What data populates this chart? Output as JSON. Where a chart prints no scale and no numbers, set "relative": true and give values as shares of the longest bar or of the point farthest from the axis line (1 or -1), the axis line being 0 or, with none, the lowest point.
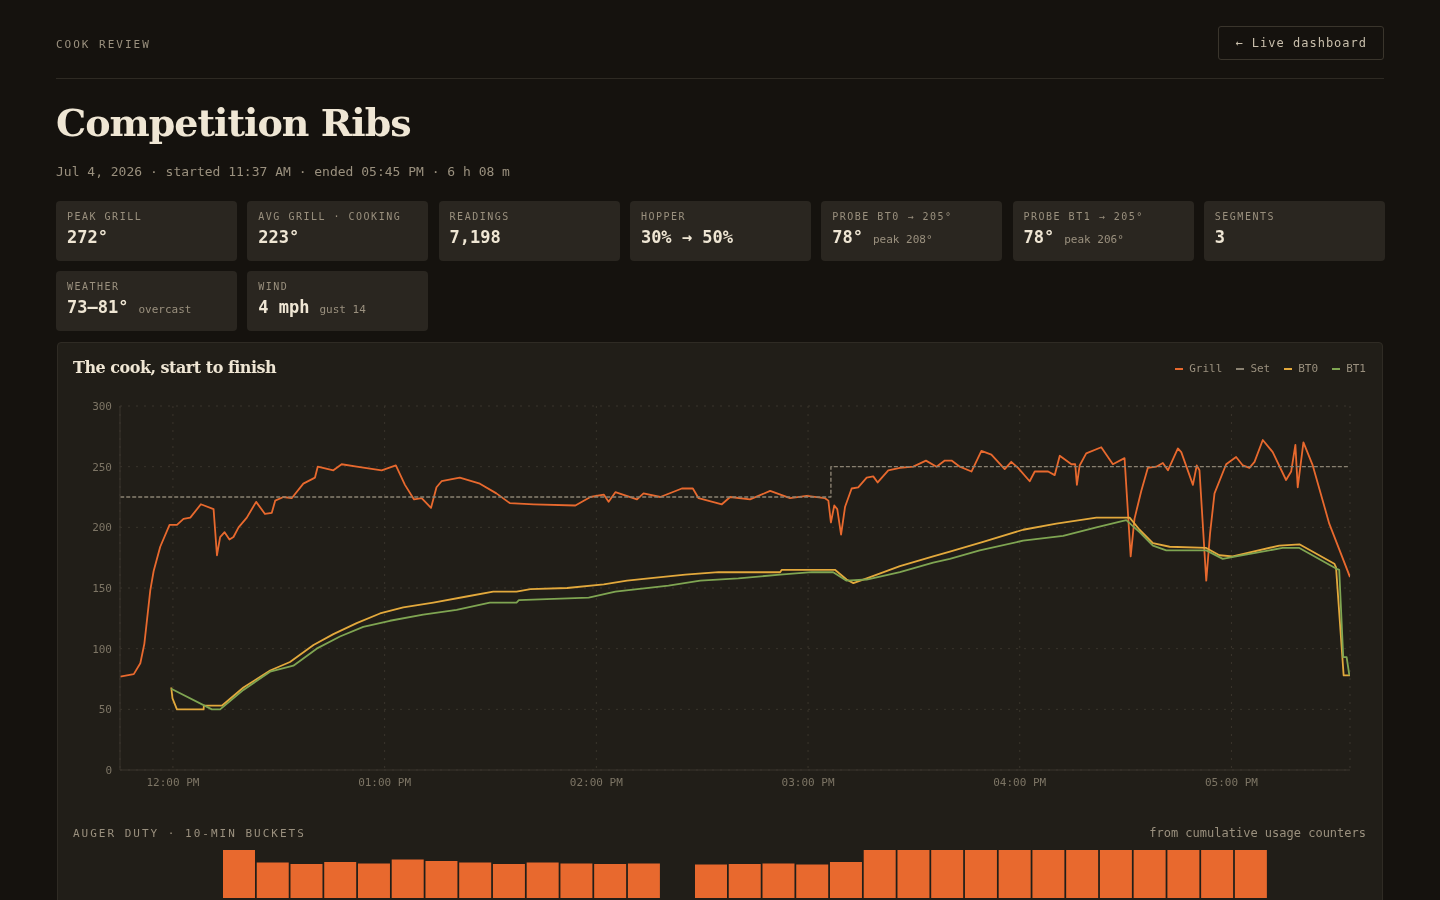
{
  "chart_data": [
    {
      "type": "other",
      "title": "Competition Ribs",
      "subtitle": "Jul 4, 2026 · started 11:37 AM · ended 05:45 PM · 6 h 08 m",
      "annotations": [
        "COOK REVIEW",
        "← Live dashboard"
      ]
    },
    {
      "type": "other",
      "title": "PEAK GRILL",
      "annotations": [
        "272°"
      ]
    },
    {
      "type": "other",
      "title": "AVG GRILL · COOKING",
      "annotations": [
        "223°"
      ]
    },
    {
      "type": "other",
      "title": "READINGS",
      "annotations": [
        "7,198"
      ]
    },
    {
      "type": "other",
      "title": "HOPPER",
      "annotations": [
        "30% → 50%"
      ]
    },
    {
      "type": "other",
      "title": "PROBE BT0 → 205°",
      "annotations": [
        "78°",
        "peak 208°"
      ]
    },
    {
      "type": "other",
      "title": "PROBE BT1 → 205°",
      "annotations": [
        "78°",
        "peak 206°"
      ]
    },
    {
      "type": "other",
      "title": "SEGMENTS",
      "annotations": [
        "3"
      ]
    },
    {
      "type": "other",
      "title": "WEATHER",
      "annotations": [
        "73–81°",
        "overcast"
      ]
    },
    {
      "type": "other",
      "title": "WIND",
      "annotations": [
        "4 mph",
        "gust 14"
      ]
    },
    {
      "type": "line",
      "title": "The cook, start to finish",
      "xlim": [
        11.75,
        17.56
      ],
      "xticks": [
        {
          "value": 12,
          "label": "12:00 PM"
        },
        {
          "value": 13,
          "label": "01:00 PM"
        },
        {
          "value": 14,
          "label": "02:00 PM"
        },
        {
          "value": 15,
          "label": "03:00 PM"
        },
        {
          "value": 16,
          "label": "04:00 PM"
        },
        {
          "value": 17,
          "label": "05:00 PM"
        }
      ],
      "ylim": [
        0,
        300
      ],
      "yticks": [
        0,
        50,
        100,
        150,
        200,
        250,
        300
      ],
      "grid": true,
      "legend": "top right",
      "series": [
        {
          "name": "Grill",
          "color": "#e8692e",
          "x": [
            11.751,
            11.815,
            11.846,
            11.865,
            11.893,
            11.909,
            11.94,
            11.984,
            12.019,
            12.05,
            12.082,
            12.132,
            12.192,
            12.208,
            12.223,
            12.244,
            12.267,
            12.286,
            12.31,
            12.349,
            12.393,
            12.435,
            12.467,
            12.483,
            12.522,
            12.561,
            12.616,
            12.671,
            12.684,
            12.758,
            12.797,
            12.868,
            12.986,
            13.053,
            13.096,
            13.139,
            13.175,
            13.219,
            13.245,
            13.269,
            13.355,
            13.45,
            13.528,
            13.591,
            13.704,
            13.901,
            13.972,
            14.035,
            14.058,
            14.09,
            14.192,
            14.223,
            14.302,
            14.404,
            14.456,
            14.483,
            14.593,
            14.632,
            14.726,
            14.821,
            14.915,
            14.994,
            15.08,
            15.096,
            15.108,
            15.124,
            15.138,
            15.156,
            15.175,
            15.206,
            15.237,
            15.277,
            15.308,
            15.329,
            15.379,
            15.434,
            15.497,
            15.557,
            15.607,
            15.646,
            15.678,
            15.717,
            15.772,
            15.819,
            15.866,
            15.929,
            15.96,
            15.992,
            16.047,
            16.071,
            16.134,
            16.165,
            16.189,
            16.244,
            16.262,
            16.27,
            16.283,
            16.314,
            16.385,
            16.44,
            16.495,
            16.524,
            16.542,
            16.574,
            16.605,
            16.645,
            16.676,
            16.7,
            16.747,
            16.763,
            16.818,
            16.836,
            16.849,
            16.881,
            16.899,
            16.92,
            16.975,
            17.022,
            17.054,
            17.085,
            17.109,
            17.148,
            17.195,
            17.258,
            17.282,
            17.302,
            17.313,
            17.34,
            17.384,
            17.462,
            17.56
          ],
          "values": [
            77,
            79,
            88,
            104,
            148,
            164,
            184,
            202,
            202,
            207,
            208,
            219,
            215,
            177,
            192,
            196,
            190,
            192,
            200,
            208,
            221,
            211,
            212,
            222,
            225,
            224,
            236,
            241,
            250,
            247,
            252,
            250,
            247,
            251,
            235,
            223,
            224,
            216,
            233,
            238,
            241,
            236,
            228,
            220,
            219,
            218,
            225,
            227,
            221,
            229,
            223,
            228,
            225,
            232,
            232,
            224,
            219,
            225,
            223,
            230,
            224,
            226,
            224,
            222,
            204,
            218,
            215,
            194,
            217,
            232,
            233,
            241,
            242,
            237,
            247,
            249,
            250,
            255,
            250,
            255,
            255,
            250,
            246,
            263,
            260,
            248,
            254,
            249,
            238,
            246,
            246,
            243,
            259,
            252,
            252,
            235,
            251,
            261,
            266,
            252,
            257,
            176,
            207,
            230,
            249,
            250,
            253,
            247,
            265,
            262,
            235,
            251,
            247,
            156,
            195,
            228,
            252,
            258,
            251,
            249,
            254,
            272,
            262,
            239,
            246,
            268,
            233,
            270,
            251,
            203,
            159
          ]
        },
        {
          "name": "Set",
          "color": "#8a8272",
          "type": "step",
          "line_style": "dashed",
          "x": [
            11.751,
            15.108,
            17.557
          ],
          "values": [
            225,
            250,
            250
          ]
        },
        {
          "name": "BT0",
          "color": "#e3a93c",
          "x": [
            11.992,
            11.998,
            12.019,
            12.145,
            12.146,
            12.231,
            12.333,
            12.459,
            12.553,
            12.664,
            12.758,
            12.868,
            12.978,
            13.088,
            13.23,
            13.387,
            13.513,
            13.623,
            13.689,
            13.862,
            14.035,
            14.145,
            14.247,
            14.42,
            14.577,
            14.868,
            14.876,
            15.127,
            15.182,
            15.214,
            15.277,
            15.434,
            15.591,
            15.67,
            15.827,
            16.016,
            16.173,
            16.362,
            16.519,
            16.566,
            16.629,
            16.708,
            16.881,
            16.943,
            17.006,
            17.226,
            17.321,
            17.486,
            17.494,
            17.53,
            17.56
          ],
          "values": [
            68,
            59,
            50,
            50,
            53,
            53,
            68,
            82,
            89,
            103,
            112,
            121,
            129,
            134,
            138,
            143,
            147,
            147,
            149,
            150,
            153,
            156,
            158,
            161,
            163,
            163,
            165,
            165,
            157,
            154,
            158,
            168,
            176,
            180,
            188,
            198,
            203,
            208,
            208,
            198,
            187,
            184,
            183,
            177,
            176,
            185,
            186,
            170,
            167,
            78,
            78
          ]
        },
        {
          "name": "BT1",
          "color": "#7fa552",
          "x": [
            11.992,
            12.184,
            12.223,
            12.333,
            12.459,
            12.569,
            12.679,
            12.789,
            12.899,
            13.025,
            13.182,
            13.34,
            13.497,
            13.623,
            13.634,
            13.964,
            14.09,
            14.341,
            14.491,
            14.671,
            14.868,
            15.017,
            15.119,
            15.182,
            15.277,
            15.434,
            15.591,
            15.67,
            15.811,
            16.016,
            16.205,
            16.362,
            16.503,
            16.566,
            16.629,
            16.692,
            16.881,
            16.959,
            17.022,
            17.242,
            17.321,
            17.494,
            17.509,
            17.528,
            17.544,
            17.557
          ],
          "values": [
            67,
            50,
            50,
            66,
            81,
            86,
            100,
            110,
            118,
            123,
            128,
            132,
            138,
            138,
            140,
            142,
            147,
            152,
            156,
            158,
            161,
            163,
            163,
            156,
            157,
            163,
            171,
            174,
            181,
            189,
            193,
            200,
            206,
            196,
            185,
            181,
            181,
            174,
            176,
            183,
            183,
            166,
            165,
            93,
            93,
            78
          ]
        }
      ]
    },
    {
      "type": "bar",
      "title": "AUGER DUTY · 10-MIN BUCKETS",
      "annotations": [
        "from cumulative usage counters"
      ],
      "relative": true,
      "color": "#e8692e",
      "categories": [
        null,
        null,
        null,
        null,
        null,
        null,
        null,
        null,
        null,
        null,
        null,
        null,
        null
      ],
      "values": [
        1,
        0.74,
        0.71,
        0.75,
        0.72,
        0.8,
        0.77,
        0.74,
        0.71,
        0.74,
        0.72,
        0.71,
        0.72
      ]
    },
    {
      "type": "bar",
      "relative": true,
      "color": "#e8692e",
      "categories": [
        null,
        null,
        null,
        null,
        null,
        null,
        null,
        null,
        null,
        null,
        null,
        null,
        null,
        null,
        null,
        null,
        null
      ],
      "values": [
        0.7,
        0.71,
        0.72,
        0.7,
        0.75,
        1,
        1,
        1,
        1,
        1,
        1,
        1,
        1,
        1,
        1,
        1,
        1
      ]
    }
  ]
}
